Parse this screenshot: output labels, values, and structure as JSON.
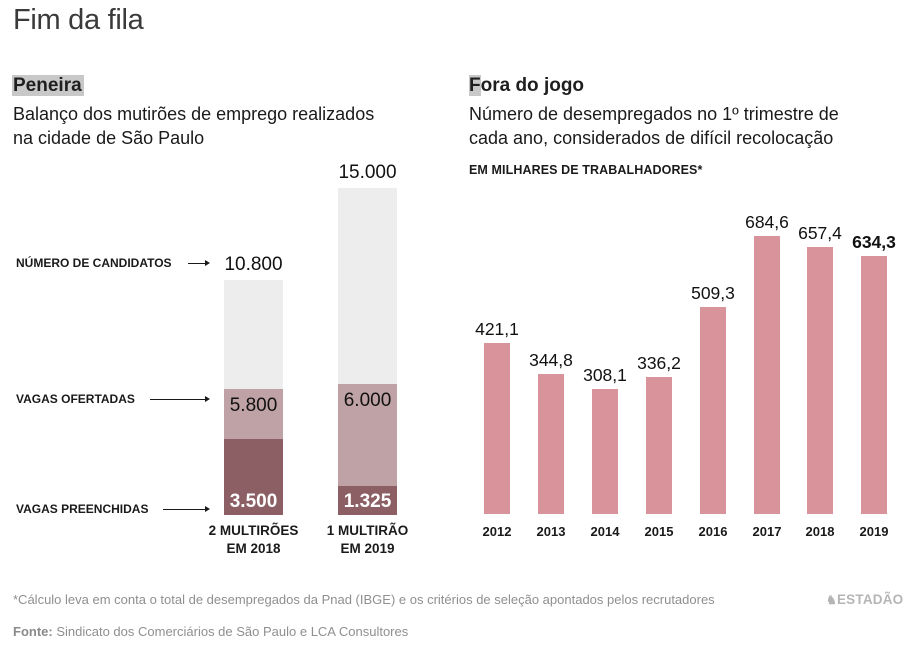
{
  "title": "Fim da fila",
  "left_section": {
    "heading": "Peneira",
    "subtitle_lines": [
      "Balanço dos mutirões de emprego realizados",
      "na cidade de São Paulo"
    ],
    "row_labels": {
      "candidates": "NÚMERO DE CANDIDATOS",
      "offered": "VAGAS OFERTADAS",
      "filled": "VAGAS PREENCHIDAS"
    }
  },
  "right_section": {
    "heading_first_letter": "F",
    "heading_rest": "ora do jogo",
    "subtitle_lines": [
      "Número de desempregados no 1º trimestre de",
      "cada ano, considerados de difícil recolocação"
    ],
    "unit_label": "EM MILHARES DE TRABALHADORES*"
  },
  "footer": {
    "footnote": "*Cálculo leva em conta o total de desempregados da Pnad (IBGE) e os critérios de seleção apontados pelos recrutadores",
    "source_label": "Fonte:",
    "source_text": " Sindicato dos Comerciários de São Paulo e LCA Consultores",
    "logo_text": "ESTADÃO",
    "logo_icon": "horse-icon"
  },
  "colors": {
    "candidates": "#ededed",
    "offered": "#bfa2a5",
    "filled": "#8b5f64",
    "unemployed": "#d9939a"
  },
  "chart_data": [
    {
      "type": "bar",
      "stacked": "overlapping",
      "title": "Peneira",
      "subtitle": "Balanço dos mutirões de emprego realizados na cidade de São Paulo",
      "categories": [
        {
          "line1": "2 MULTIRÕES",
          "line2": "EM 2018"
        },
        {
          "line1": "1 MULTIRÃO",
          "line2": "EM 2019"
        }
      ],
      "series": [
        {
          "name": "NÚMERO DE CANDIDATOS",
          "values": [
            10800,
            15000
          ],
          "labels": [
            "10.800",
            "15.000"
          ]
        },
        {
          "name": "VAGAS OFERTADAS",
          "values": [
            5800,
            6000
          ],
          "labels": [
            "5.800",
            "6.000"
          ]
        },
        {
          "name": "VAGAS PREENCHIDAS",
          "values": [
            3500,
            1325
          ],
          "labels": [
            "3.500",
            "1.325"
          ]
        }
      ],
      "ylim": [
        0,
        15000
      ],
      "grid": false,
      "legend": "left"
    },
    {
      "type": "bar",
      "title": "Fora do jogo",
      "subtitle": "Número de desempregados no 1º trimestre de cada ano, considerados de difícil recolocação",
      "ylabel": "EM MILHARES DE TRABALHADORES*",
      "categories": [
        "2012",
        "2013",
        "2014",
        "2015",
        "2016",
        "2017",
        "2018",
        "2019"
      ],
      "values": [
        421.1,
        344.8,
        308.1,
        336.2,
        509.3,
        684.6,
        657.4,
        634.3
      ],
      "labels": [
        "421,1",
        "344,8",
        "308,1",
        "336,2",
        "509,3",
        "684,6",
        "657,4",
        "634,3"
      ],
      "highlight_index": 7,
      "ylim": [
        0,
        700
      ],
      "grid": false
    }
  ]
}
